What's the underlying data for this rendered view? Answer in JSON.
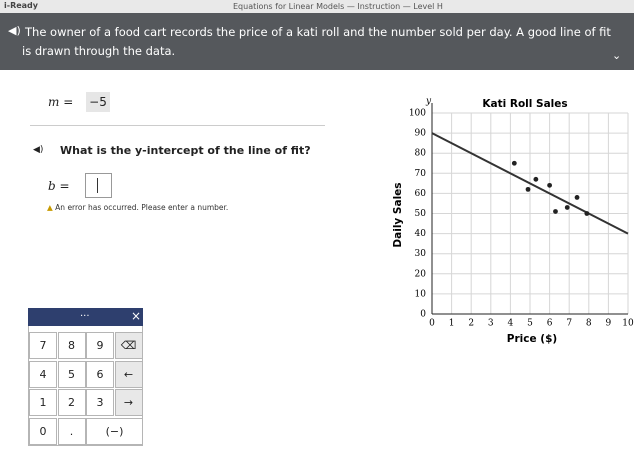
{
  "header": {
    "logo": "i-Ready",
    "title": "Equations for Linear Models — Instruction — Level H"
  },
  "prompt": "The owner of a food cart records the price of a kati roll and the number sold per day. A good line of fit is drawn through the data.",
  "slope": {
    "label": "m =",
    "value": "−5"
  },
  "question": "What is the y-intercept of the line of fit?",
  "answer": {
    "label": "b ="
  },
  "error": "An error has occurred. Please enter a number.",
  "keypad": {
    "menu": "...",
    "close": "×",
    "keys": [
      [
        "7",
        "8",
        "9",
        "⌫"
      ],
      [
        "4",
        "5",
        "6",
        "←"
      ],
      [
        "1",
        "2",
        "3",
        "→"
      ],
      [
        "0",
        ".",
        "(−)"
      ]
    ]
  },
  "chart_data": {
    "type": "scatter",
    "title": "Kati Roll Sales",
    "x_label": "Price ($)",
    "y_label": "Daily Sales",
    "y_axis_letter": "y",
    "x": [
      4.2,
      4.9,
      5.3,
      6,
      6.3,
      6.9,
      7.4,
      7.9
    ],
    "y": [
      75,
      62,
      67,
      64,
      51,
      53,
      58,
      50
    ],
    "color": "#222",
    "line_of_fit": {
      "x": [
        0,
        10
      ],
      "y": [
        90,
        40
      ],
      "color": "#333"
    },
    "xlim": [
      0,
      10
    ],
    "ylim": [
      0,
      100
    ],
    "xticks": [
      0,
      1,
      2,
      3,
      4,
      5,
      6,
      7,
      8,
      9,
      10
    ],
    "yticks": [
      0,
      10,
      20,
      30,
      40,
      50,
      60,
      70,
      80,
      90,
      100
    ],
    "grid": true
  }
}
